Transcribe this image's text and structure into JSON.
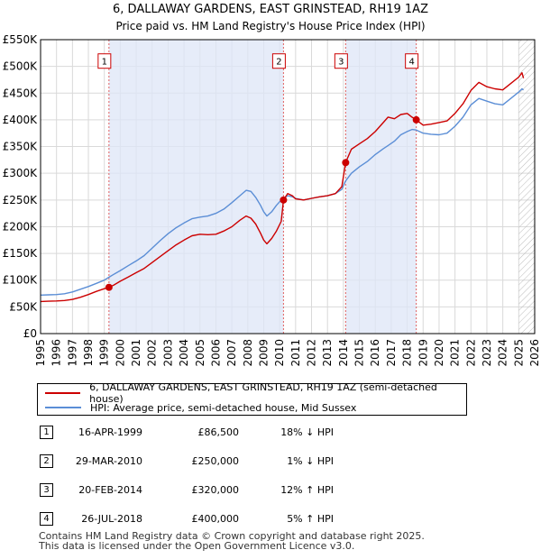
{
  "chart_data": {
    "type": "line",
    "title": "6, DALLAWAY GARDENS, EAST GRINSTEAD, RH19 1AZ",
    "subtitle": "Price paid vs. HM Land Registry's House Price Index (HPI)",
    "xlim": [
      1995,
      2026
    ],
    "ylim": [
      0,
      550000
    ],
    "x_ticks": [
      "1995",
      "1996",
      "1997",
      "1998",
      "1999",
      "2000",
      "2001",
      "2002",
      "2003",
      "2004",
      "2005",
      "2006",
      "2007",
      "2008",
      "2009",
      "2010",
      "2011",
      "2012",
      "2013",
      "2014",
      "2015",
      "2016",
      "2017",
      "2018",
      "2019",
      "2020",
      "2021",
      "2022",
      "2023",
      "2024",
      "2025",
      "2026"
    ],
    "y_ticks": [
      {
        "value": 0,
        "label": "£0"
      },
      {
        "value": 50000,
        "label": "£50K"
      },
      {
        "value": 100000,
        "label": "£100K"
      },
      {
        "value": 150000,
        "label": "£150K"
      },
      {
        "value": 200000,
        "label": "£200K"
      },
      {
        "value": 250000,
        "label": "£250K"
      },
      {
        "value": 300000,
        "label": "£300K"
      },
      {
        "value": 350000,
        "label": "£350K"
      },
      {
        "value": 400000,
        "label": "£400K"
      },
      {
        "value": 450000,
        "label": "£450K"
      },
      {
        "value": 500000,
        "label": "£500K"
      },
      {
        "value": 550000,
        "label": "£550K"
      }
    ],
    "shaded_spans": [
      [
        1999.29,
        2010.24
      ],
      [
        2014.14,
        2018.57
      ]
    ],
    "hatched_from": 2025.0,
    "series": [
      {
        "name": "6, DALLAWAY GARDENS, EAST GRINSTEAD, RH19 1AZ (semi-detached house)",
        "color": "#cc0000",
        "points": [
          [
            1995.0,
            60000
          ],
          [
            1995.5,
            60500
          ],
          [
            1996.0,
            61000
          ],
          [
            1996.5,
            62000
          ],
          [
            1997.0,
            64000
          ],
          [
            1997.5,
            68000
          ],
          [
            1998.0,
            73000
          ],
          [
            1998.5,
            79000
          ],
          [
            1999.0,
            84000
          ],
          [
            1999.29,
            86500
          ],
          [
            1999.6,
            91000
          ],
          [
            2000.0,
            98000
          ],
          [
            2000.5,
            106000
          ],
          [
            2001.0,
            114000
          ],
          [
            2001.5,
            122000
          ],
          [
            2002.0,
            133000
          ],
          [
            2002.5,
            144000
          ],
          [
            2003.0,
            155000
          ],
          [
            2003.5,
            166000
          ],
          [
            2004.0,
            175000
          ],
          [
            2004.5,
            183000
          ],
          [
            2005.0,
            186000
          ],
          [
            2005.5,
            185000
          ],
          [
            2006.0,
            186000
          ],
          [
            2006.5,
            192000
          ],
          [
            2007.0,
            200000
          ],
          [
            2007.5,
            212000
          ],
          [
            2007.9,
            220000
          ],
          [
            2008.2,
            216000
          ],
          [
            2008.5,
            205000
          ],
          [
            2008.8,
            188000
          ],
          [
            2009.0,
            175000
          ],
          [
            2009.2,
            168000
          ],
          [
            2009.5,
            178000
          ],
          [
            2009.8,
            192000
          ],
          [
            2010.1,
            210000
          ],
          [
            2010.24,
            250000
          ],
          [
            2010.5,
            262000
          ],
          [
            2010.8,
            258000
          ],
          [
            2011.0,
            252000
          ],
          [
            2011.5,
            250000
          ],
          [
            2012.0,
            253000
          ],
          [
            2012.5,
            256000
          ],
          [
            2013.0,
            258000
          ],
          [
            2013.5,
            262000
          ],
          [
            2013.9,
            275000
          ],
          [
            2014.14,
            320000
          ],
          [
            2014.5,
            345000
          ],
          [
            2015.0,
            355000
          ],
          [
            2015.5,
            365000
          ],
          [
            2016.0,
            378000
          ],
          [
            2016.5,
            395000
          ],
          [
            2016.8,
            405000
          ],
          [
            2017.2,
            402000
          ],
          [
            2017.6,
            410000
          ],
          [
            2018.0,
            412000
          ],
          [
            2018.3,
            405000
          ],
          [
            2018.57,
            400000
          ],
          [
            2019.0,
            390000
          ],
          [
            2019.5,
            392000
          ],
          [
            2020.0,
            395000
          ],
          [
            2020.5,
            398000
          ],
          [
            2021.0,
            412000
          ],
          [
            2021.5,
            430000
          ],
          [
            2022.0,
            455000
          ],
          [
            2022.5,
            470000
          ],
          [
            2023.0,
            462000
          ],
          [
            2023.5,
            458000
          ],
          [
            2024.0,
            456000
          ],
          [
            2024.5,
            468000
          ],
          [
            2025.0,
            480000
          ],
          [
            2025.2,
            488000
          ],
          [
            2025.3,
            478000
          ]
        ]
      },
      {
        "name": "HPI: Average price, semi-detached house, Mid Sussex",
        "color": "#5b8ed6",
        "points": [
          [
            1995.0,
            72000
          ],
          [
            1995.5,
            72500
          ],
          [
            1996.0,
            73000
          ],
          [
            1996.5,
            74500
          ],
          [
            1997.0,
            78000
          ],
          [
            1997.5,
            83000
          ],
          [
            1998.0,
            88000
          ],
          [
            1998.5,
            94000
          ],
          [
            1999.0,
            100000
          ],
          [
            1999.29,
            105500
          ],
          [
            1999.6,
            111000
          ],
          [
            2000.0,
            118000
          ],
          [
            2000.5,
            127000
          ],
          [
            2001.0,
            136000
          ],
          [
            2001.5,
            146000
          ],
          [
            2002.0,
            160000
          ],
          [
            2002.5,
            174000
          ],
          [
            2003.0,
            187000
          ],
          [
            2003.5,
            198000
          ],
          [
            2004.0,
            207000
          ],
          [
            2004.5,
            215000
          ],
          [
            2005.0,
            218000
          ],
          [
            2005.5,
            220000
          ],
          [
            2006.0,
            225000
          ],
          [
            2006.5,
            233000
          ],
          [
            2007.0,
            245000
          ],
          [
            2007.5,
            258000
          ],
          [
            2007.9,
            268000
          ],
          [
            2008.2,
            266000
          ],
          [
            2008.5,
            255000
          ],
          [
            2008.8,
            240000
          ],
          [
            2009.0,
            228000
          ],
          [
            2009.2,
            220000
          ],
          [
            2009.5,
            228000
          ],
          [
            2009.8,
            240000
          ],
          [
            2010.1,
            250000
          ],
          [
            2010.24,
            252500
          ],
          [
            2010.5,
            258000
          ],
          [
            2010.8,
            256000
          ],
          [
            2011.0,
            253000
          ],
          [
            2011.5,
            250000
          ],
          [
            2012.0,
            253000
          ],
          [
            2012.5,
            256000
          ],
          [
            2013.0,
            258000
          ],
          [
            2013.5,
            262000
          ],
          [
            2013.9,
            270000
          ],
          [
            2014.14,
            285700
          ],
          [
            2014.5,
            300000
          ],
          [
            2015.0,
            312000
          ],
          [
            2015.5,
            322000
          ],
          [
            2016.0,
            335000
          ],
          [
            2016.5,
            346000
          ],
          [
            2016.8,
            352000
          ],
          [
            2017.2,
            360000
          ],
          [
            2017.6,
            372000
          ],
          [
            2018.0,
            378000
          ],
          [
            2018.3,
            382000
          ],
          [
            2018.57,
            381000
          ],
          [
            2019.0,
            375000
          ],
          [
            2019.5,
            373000
          ],
          [
            2020.0,
            372000
          ],
          [
            2020.5,
            375000
          ],
          [
            2021.0,
            388000
          ],
          [
            2021.5,
            405000
          ],
          [
            2022.0,
            428000
          ],
          [
            2022.5,
            440000
          ],
          [
            2023.0,
            435000
          ],
          [
            2023.5,
            430000
          ],
          [
            2024.0,
            428000
          ],
          [
            2024.5,
            440000
          ],
          [
            2025.0,
            452000
          ],
          [
            2025.2,
            458000
          ],
          [
            2025.3,
            456000
          ]
        ]
      }
    ],
    "sales": [
      {
        "num": "1",
        "x": 1999.29,
        "y": 86500
      },
      {
        "num": "2",
        "x": 2010.24,
        "y": 250000
      },
      {
        "num": "3",
        "x": 2014.14,
        "y": 320000
      },
      {
        "num": "4",
        "x": 2018.57,
        "y": 400000
      }
    ],
    "marker_label_value": 510000
  },
  "legend": {
    "price_paid": "6, DALLAWAY GARDENS, EAST GRINSTEAD, RH19 1AZ (semi-detached house)",
    "hpi": "HPI: Average price, semi-detached house, Mid Sussex",
    "price_color": "#cc0000",
    "hpi_color": "#5b8ed6"
  },
  "sales_table": [
    {
      "num": "1",
      "date": "16-APR-1999",
      "price": "£86,500",
      "hpi": "18% ↓ HPI"
    },
    {
      "num": "2",
      "date": "29-MAR-2010",
      "price": "£250,000",
      "hpi": "1% ↓ HPI"
    },
    {
      "num": "3",
      "date": "20-FEB-2014",
      "price": "£320,000",
      "hpi": "12% ↑ HPI"
    },
    {
      "num": "4",
      "date": "26-JUL-2018",
      "price": "£400,000",
      "hpi": "5% ↑ HPI"
    }
  ],
  "footer": {
    "line1": "Contains HM Land Registry data © Crown copyright and database right 2025.",
    "line2": "This data is licensed under the Open Government Licence v3.0."
  }
}
